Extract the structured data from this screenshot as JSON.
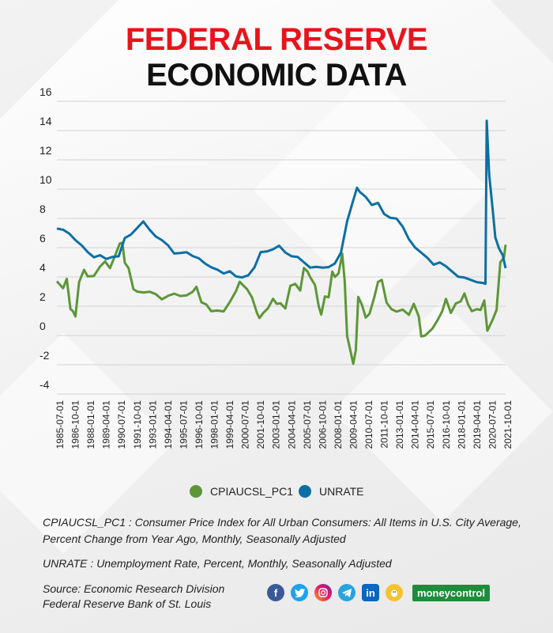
{
  "header": {
    "title_line1": "FEDERAL RESERVE",
    "title_line2": "ECONOMIC DATA"
  },
  "colors": {
    "cpi": "#5d9637",
    "unrate": "#0b6fa5",
    "title_red": "#e8141c"
  },
  "chart_data": {
    "type": "line",
    "title": "FEDERAL RESERVE ECONOMIC DATA",
    "xlabel": "",
    "ylabel": "",
    "ylim": [
      -4,
      16
    ],
    "yticks": [
      16,
      14,
      12,
      10,
      8,
      6,
      4,
      2,
      0,
      -2,
      -4
    ],
    "xlim": [
      1985.5,
      2021.83
    ],
    "xtick_labels": [
      "1985-07-01",
      "1986-10-01",
      "1988-01-01",
      "1989-04-01",
      "1990-07-01",
      "1991-10-01",
      "1993-01-01",
      "1994-04-01",
      "1995-07-01",
      "1996-10-01",
      "1998-01-01",
      "1999-04-01",
      "2000-07-01",
      "2001-10-01",
      "2003-01-01",
      "2004-04-01",
      "2005-07-01",
      "2006-10-01",
      "2008-01-01",
      "2009-04-01",
      "2010-07-01",
      "2011-10-01",
      "2013-01-01",
      "2014-04-01",
      "2015-07-01",
      "2016-10-01",
      "2018-01-01",
      "2019-04-01",
      "2020-07-01",
      "2021-10-01"
    ],
    "grid": "horizontal",
    "legend": "bottom",
    "series": [
      {
        "name": "CPIAUCSL_PC1",
        "x": [
          1985.5,
          1986.0,
          1986.3,
          1986.6,
          1986.8,
          1987.0,
          1987.3,
          1987.7,
          1988.0,
          1988.5,
          1989.0,
          1989.4,
          1989.8,
          1990.2,
          1990.6,
          1990.8,
          1991.0,
          1991.3,
          1991.7,
          1992.0,
          1992.5,
          1993.0,
          1993.5,
          1994.0,
          1994.5,
          1995.0,
          1995.5,
          1996.0,
          1996.5,
          1996.8,
          1997.2,
          1997.6,
          1998.0,
          1998.5,
          1999.0,
          1999.5,
          2000.0,
          2000.3,
          2000.6,
          2000.9,
          2001.3,
          2001.7,
          2001.9,
          2002.2,
          2002.6,
          2003.0,
          2003.3,
          2003.6,
          2004.0,
          2004.4,
          2004.8,
          2005.2,
          2005.5,
          2005.8,
          2006.0,
          2006.4,
          2006.7,
          2006.9,
          2007.2,
          2007.5,
          2007.8,
          2008.0,
          2008.3,
          2008.6,
          2008.8,
          2009.0,
          2009.2,
          2009.5,
          2009.7,
          2009.9,
          2010.2,
          2010.5,
          2010.8,
          2011.2,
          2011.5,
          2011.8,
          2012.2,
          2012.6,
          2013.0,
          2013.5,
          2014.0,
          2014.4,
          2014.8,
          2015.0,
          2015.3,
          2015.6,
          2015.9,
          2016.3,
          2016.7,
          2017.0,
          2017.4,
          2017.8,
          2018.2,
          2018.5,
          2018.8,
          2019.1,
          2019.5,
          2019.8,
          2020.1,
          2020.35,
          2020.5,
          2020.8,
          2021.1,
          2021.4,
          2021.7,
          2021.83
        ],
        "values": [
          3.7,
          3.2,
          3.9,
          1.9,
          1.6,
          1.3,
          3.7,
          4.4,
          4.0,
          4.1,
          4.8,
          5.0,
          4.6,
          5.5,
          6.2,
          6.3,
          5.0,
          4.7,
          3.1,
          3.0,
          3.0,
          2.9,
          2.8,
          2.5,
          2.8,
          2.8,
          2.7,
          2.8,
          2.9,
          3.3,
          2.3,
          2.2,
          1.6,
          1.7,
          1.7,
          2.2,
          3.0,
          3.7,
          3.5,
          3.1,
          2.6,
          1.6,
          1.1,
          1.5,
          1.9,
          2.6,
          2.1,
          2.2,
          1.9,
          3.3,
          3.5,
          3.1,
          4.7,
          4.3,
          4.0,
          3.5,
          1.9,
          1.4,
          2.7,
          2.7,
          4.3,
          4.0,
          4.3,
          5.5,
          3.7,
          0.0,
          -0.7,
          -2.0,
          -1.0,
          2.7,
          2.0,
          1.2,
          1.5,
          2.7,
          3.6,
          3.8,
          2.3,
          1.7,
          1.6,
          1.8,
          1.5,
          2.1,
          1.3,
          0.0,
          -0.1,
          0.2,
          0.5,
          1.1,
          1.6,
          2.5,
          1.6,
          2.1,
          2.3,
          2.9,
          2.2,
          1.6,
          1.8,
          1.8,
          2.3,
          0.3,
          0.6,
          1.2,
          1.7,
          5.0,
          5.4,
          6.2
        ]
      },
      {
        "name": "UNRATE",
        "x": [
          1985.5,
          1986.0,
          1986.5,
          1987.0,
          1987.5,
          1988.0,
          1988.5,
          1989.0,
          1989.5,
          1990.0,
          1990.5,
          1991.0,
          1991.5,
          1992.0,
          1992.5,
          1993.0,
          1993.5,
          1994.0,
          1994.5,
          1995.0,
          1995.5,
          1996.0,
          1996.5,
          1997.0,
          1997.5,
          1998.0,
          1998.5,
          1999.0,
          1999.5,
          2000.0,
          2000.5,
          2001.0,
          2001.5,
          2002.0,
          2002.5,
          2003.0,
          2003.5,
          2004.0,
          2004.5,
          2005.0,
          2005.5,
          2006.0,
          2006.5,
          2007.0,
          2007.5,
          2008.0,
          2008.5,
          2009.0,
          2009.5,
          2009.8,
          2010.0,
          2010.5,
          2011.0,
          2011.5,
          2012.0,
          2012.5,
          2013.0,
          2013.5,
          2014.0,
          2014.5,
          2015.0,
          2015.5,
          2016.0,
          2016.5,
          2017.0,
          2017.5,
          2018.0,
          2018.5,
          2019.0,
          2019.5,
          2020.0,
          2020.2,
          2020.3,
          2020.5,
          2020.8,
          2021.0,
          2021.3,
          2021.6,
          2021.83
        ],
        "values": [
          7.3,
          7.2,
          7.0,
          6.6,
          6.1,
          5.7,
          5.4,
          5.4,
          5.2,
          5.4,
          5.5,
          6.6,
          6.9,
          7.4,
          7.7,
          7.2,
          6.8,
          6.6,
          6.1,
          5.6,
          5.7,
          5.6,
          5.4,
          5.3,
          5.0,
          4.6,
          4.5,
          4.3,
          4.3,
          4.0,
          4.0,
          4.2,
          4.6,
          5.7,
          5.8,
          5.8,
          6.1,
          5.7,
          5.5,
          5.3,
          5.0,
          4.7,
          4.6,
          4.6,
          4.7,
          5.0,
          5.6,
          7.8,
          9.3,
          10.0,
          9.8,
          9.5,
          9.0,
          9.0,
          8.3,
          8.1,
          7.9,
          7.4,
          6.6,
          6.1,
          5.6,
          5.3,
          4.9,
          4.9,
          4.7,
          4.4,
          4.1,
          3.9,
          3.8,
          3.7,
          3.5,
          3.5,
          14.7,
          11.1,
          8.4,
          6.7,
          6.0,
          5.4,
          4.6
        ]
      }
    ]
  },
  "legend": {
    "cpi_label": "CPIAUCSL_PC1",
    "unrate_label": "UNRATE"
  },
  "notes": {
    "cpi_note": "CPIAUCSL_PC1 : Consumer Price Index for All Urban Consumers: All Items in U.S. City Average, Percent Change from Year Ago, Monthly, Seasonally Adjusted",
    "unrate_note": "UNRATE : Unemployment Rate,   Percent, Monthly, Seasonally Adjusted"
  },
  "source": {
    "line1": "Source: Economic Research Division",
    "line2": "Federal Reserve Bank of St. Louis"
  },
  "social": {
    "fb": "f",
    "li": "in",
    "brand": "moneycontrol"
  }
}
